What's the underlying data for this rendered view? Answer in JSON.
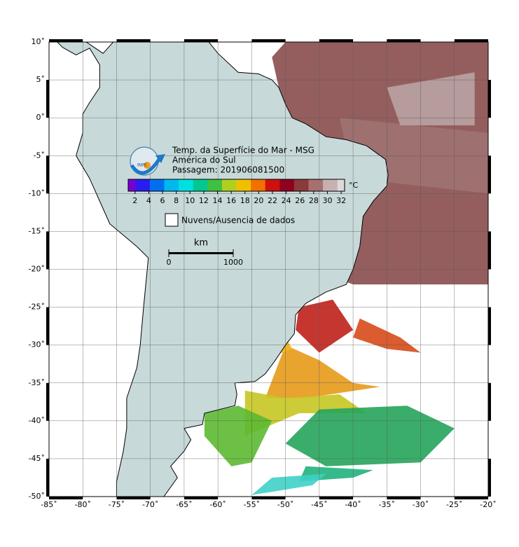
{
  "map": {
    "title_lines": [
      "Temp. da Superfície do Mar - MSG",
      "América do Sul",
      "Passagem: 201906081500"
    ],
    "colorbar": {
      "unit": "°C",
      "range": [
        1,
        32.5
      ],
      "ticks": [
        2,
        4,
        6,
        8,
        10,
        12,
        14,
        16,
        18,
        20,
        22,
        24,
        26,
        28,
        30,
        32
      ]
    },
    "legend": "Nuvens/Ausencia de dados",
    "scale": {
      "unit": "km",
      "ticks": [
        0,
        1000
      ]
    },
    "lon_range": [
      -85,
      -20
    ],
    "lat_range": [
      -50,
      10
    ],
    "lon_ticks": [
      {
        "value": -85,
        "label": "-85˚"
      },
      {
        "value": -80,
        "label": "-80˚"
      },
      {
        "value": -75,
        "label": "-75˚"
      },
      {
        "value": -70,
        "label": "-70˚"
      },
      {
        "value": -65,
        "label": "-65˚"
      },
      {
        "value": -60,
        "label": "-60˚"
      },
      {
        "value": -55,
        "label": "-55˚"
      },
      {
        "value": -50,
        "label": "-50˚"
      },
      {
        "value": -45,
        "label": "-45˚"
      },
      {
        "value": -40,
        "label": "-40˚"
      },
      {
        "value": -35,
        "label": "-35˚"
      },
      {
        "value": -30,
        "label": "-30˚"
      },
      {
        "value": -25,
        "label": "-25˚"
      },
      {
        "value": -20,
        "label": "-20˚"
      }
    ],
    "lat_ticks": [
      {
        "value": 10,
        "label": "10˚"
      },
      {
        "value": 5,
        "label": "5˚"
      },
      {
        "value": 0,
        "label": "0˚"
      },
      {
        "value": -5,
        "label": "-5˚"
      },
      {
        "value": -10,
        "label": "-10˚"
      },
      {
        "value": -15,
        "label": "-15˚"
      },
      {
        "value": -20,
        "label": "-20˚"
      },
      {
        "value": -25,
        "label": "-25˚"
      },
      {
        "value": -30,
        "label": "-30˚"
      },
      {
        "value": -35,
        "label": "-35˚"
      },
      {
        "value": -40,
        "label": "-40˚"
      },
      {
        "value": -45,
        "label": "-45˚"
      },
      {
        "value": -50,
        "label": "-50˚"
      }
    ]
  }
}
